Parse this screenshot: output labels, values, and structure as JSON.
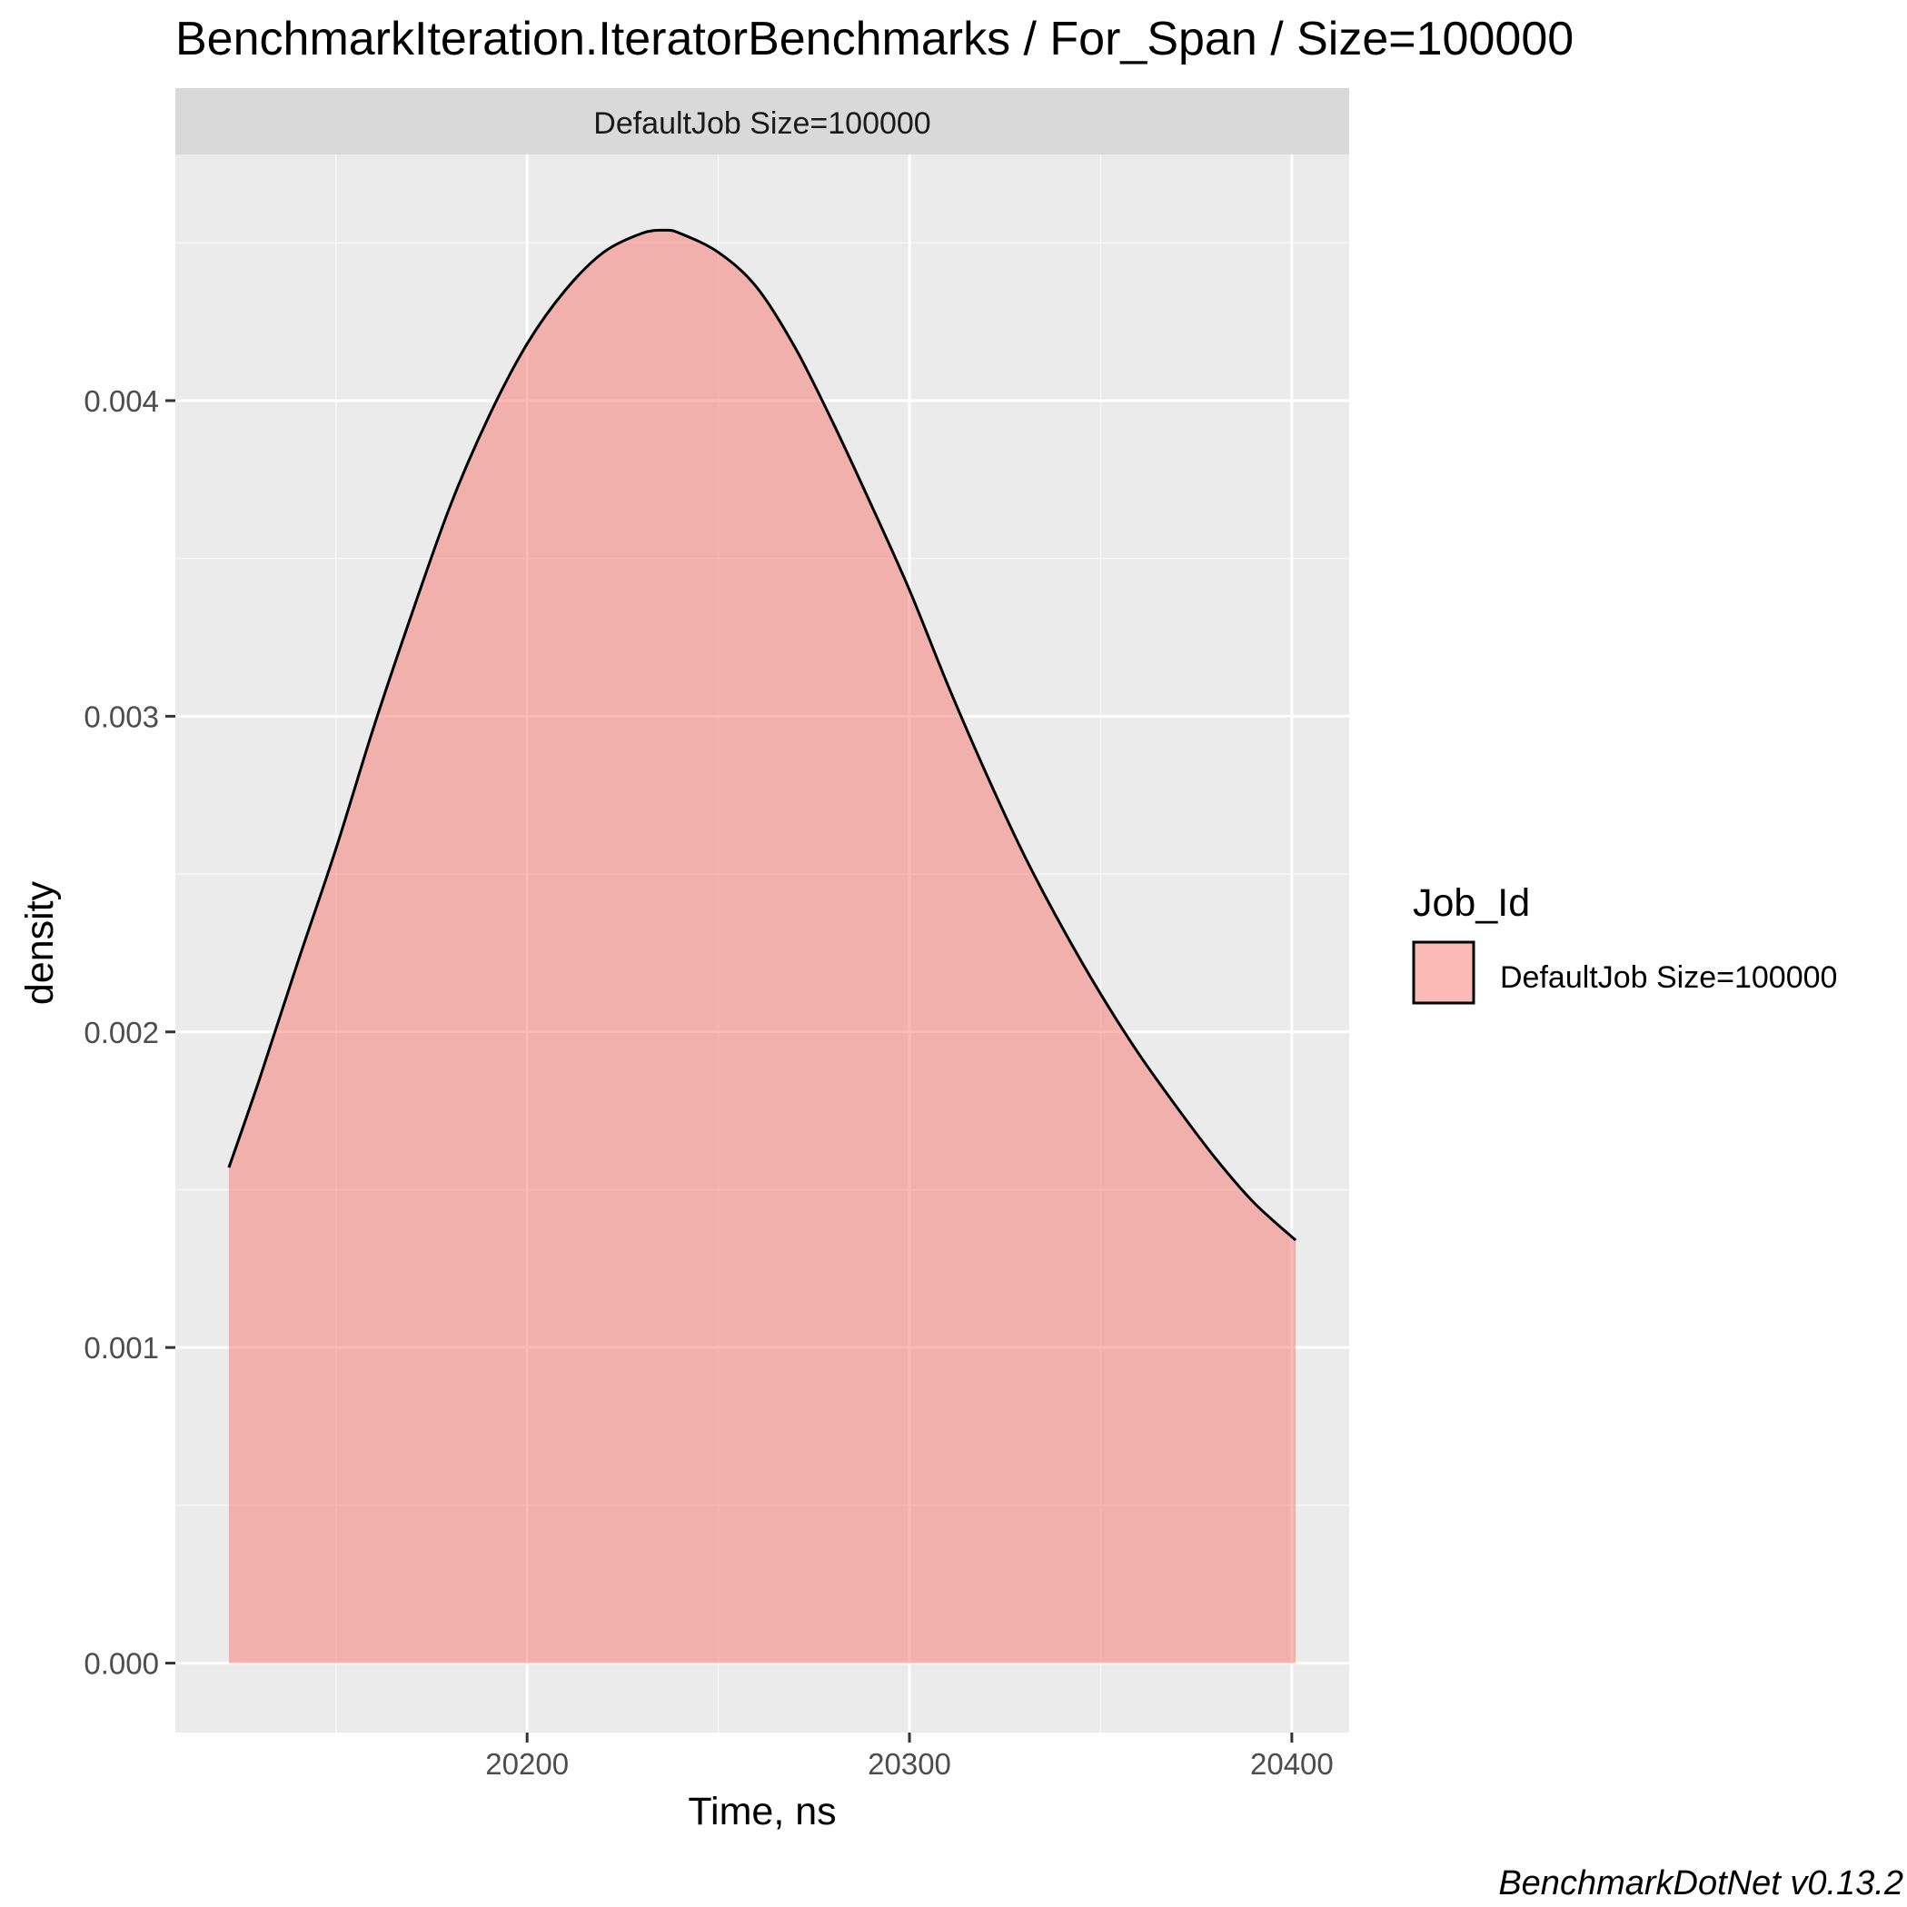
{
  "chart_data": {
    "type": "area",
    "title": "BenchmarkIteration.IteratorBenchmarks / For_Span / Size=100000",
    "facet_label": "DefaultJob Size=100000",
    "xlabel": "Time, ns",
    "ylabel": "density",
    "xlim": [
      20108,
      20415
    ],
    "ylim": [
      -0.00022,
      0.00478
    ],
    "x_ticks": [
      20200,
      20300,
      20400
    ],
    "x_tick_labels": [
      "20200",
      "20300",
      "20400"
    ],
    "y_ticks": [
      0.0,
      0.001,
      0.002,
      0.003,
      0.004
    ],
    "y_tick_labels": [
      "0.000",
      "0.001",
      "0.002",
      "0.003",
      "0.004"
    ],
    "x_minor_ticks": [
      20150,
      20250,
      20350
    ],
    "y_minor_ticks": [
      0.0005,
      0.0015,
      0.0025,
      0.0035,
      0.0045
    ],
    "grid": true,
    "legend": {
      "title": "Job_Id",
      "position": "right",
      "entries": [
        "DefaultJob Size=100000"
      ]
    },
    "series": [
      {
        "name": "DefaultJob Size=100000",
        "fill": "#f8766d",
        "fill_opacity": 0.5,
        "line_color": "#000000",
        "x": [
          20122,
          20130,
          20140,
          20150,
          20160,
          20170,
          20180,
          20190,
          20200,
          20210,
          20220,
          20230,
          20236,
          20240,
          20250,
          20260,
          20270,
          20280,
          20290,
          20300,
          20310,
          20320,
          20330,
          20340,
          20350,
          20360,
          20370,
          20380,
          20390,
          20401
        ],
        "y": [
          0.00157,
          0.00185,
          0.00222,
          0.00258,
          0.00297,
          0.00333,
          0.00367,
          0.00395,
          0.00418,
          0.00435,
          0.00447,
          0.00453,
          0.00454,
          0.00453,
          0.00447,
          0.00436,
          0.00417,
          0.00393,
          0.00367,
          0.0034,
          0.0031,
          0.00282,
          0.00256,
          0.00233,
          0.00212,
          0.00193,
          0.00176,
          0.0016,
          0.00146,
          0.00134
        ]
      }
    ],
    "caption": "BenchmarkDotNet v0.13.2"
  },
  "colors": {
    "panel_background": "#ebebeb",
    "strip_background": "#d9d9d9",
    "grid_major": "#ffffff",
    "grid_minor": "#f7f7f7",
    "tick_color": "#333333"
  }
}
